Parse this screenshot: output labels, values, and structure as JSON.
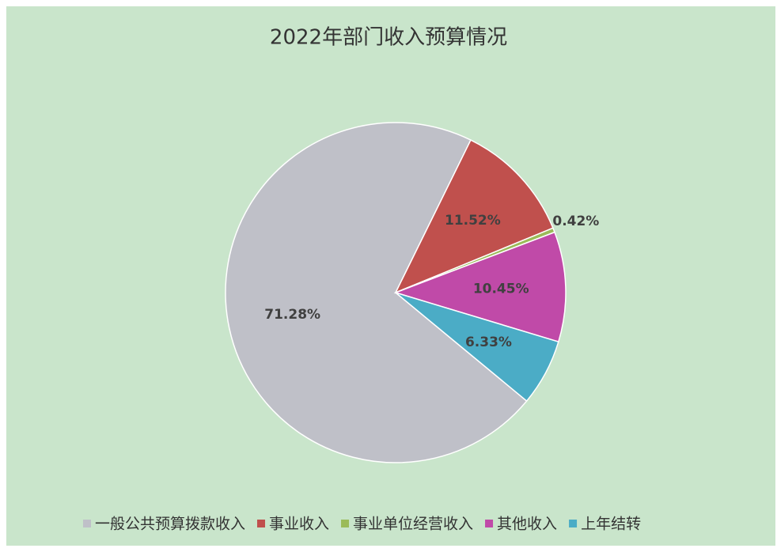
{
  "chart_data": {
    "type": "pie",
    "title": "2022年部门收入预算情况",
    "categories": [
      "一般公共预算拨款收入",
      "事业收入",
      "事业单位经营收入",
      "其他收入",
      "上年结转"
    ],
    "values": [
      71.28,
      11.52,
      0.42,
      10.45,
      6.33
    ],
    "value_labels": [
      "71.28%",
      "11.52%",
      "0.42%",
      "10.45%",
      "6.33%"
    ],
    "colors": [
      "#bfc0c8",
      "#c0504d",
      "#9bbb59",
      "#c04aa8",
      "#4bacc6"
    ],
    "legend": "bottom"
  }
}
